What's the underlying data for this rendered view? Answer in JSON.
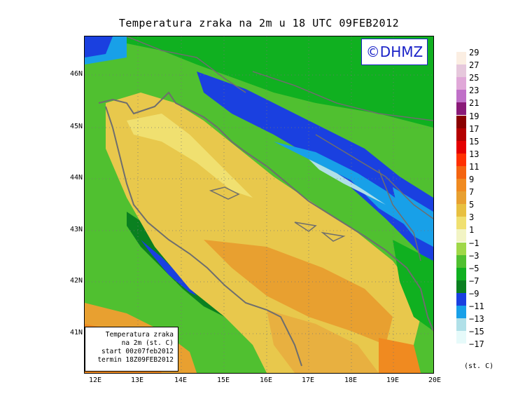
{
  "title": "Temperatura zraka na 2m u 18 UTC 09FEB2012",
  "copyright": "©DHMZ",
  "info_box": {
    "line1": "Temperatura zraka",
    "line2": "na 2m (st. C)",
    "line3": "start 00z07feb2012",
    "line4": "termin 18Z09FEB2012"
  },
  "lat_labels": [
    "46N",
    "45N",
    "44N",
    "43N",
    "42N",
    "41N"
  ],
  "lon_labels": [
    "12E",
    "13E",
    "14E",
    "15E",
    "16E",
    "17E",
    "18E",
    "19E",
    "20E"
  ],
  "legend": {
    "units": "(st. C)",
    "levels": [
      {
        "label": "29",
        "color": "#fbeee2"
      },
      {
        "label": "27",
        "color": "#e6c8dc"
      },
      {
        "label": "25",
        "color": "#e0a8d8"
      },
      {
        "label": "23",
        "color": "#c070c8"
      },
      {
        "label": "21",
        "color": "#8a1a78"
      },
      {
        "label": "19",
        "color": "#8a0000"
      },
      {
        "label": "17",
        "color": "#b40000"
      },
      {
        "label": "15",
        "color": "#e40000"
      },
      {
        "label": "13",
        "color": "#ff3000"
      },
      {
        "label": "11",
        "color": "#f46410"
      },
      {
        "label": "9",
        "color": "#f08a20"
      },
      {
        "label": "7",
        "color": "#e8a030"
      },
      {
        "label": "5",
        "color": "#e8c040"
      },
      {
        "label": "3",
        "color": "#f0e070"
      },
      {
        "label": "1",
        "color": "#f2f4c4"
      },
      {
        "label": "−1",
        "color": "#a0d848"
      },
      {
        "label": "−3",
        "color": "#50c030"
      },
      {
        "label": "−5",
        "color": "#10b020"
      },
      {
        "label": "−7",
        "color": "#0a8020"
      },
      {
        "label": "−9",
        "color": "#1a40e0"
      },
      {
        "label": "−11",
        "color": "#18a0e8"
      },
      {
        "label": "−13",
        "color": "#b0e0e8"
      },
      {
        "label": "−15",
        "color": "#e6fafa"
      },
      {
        "label": "−17",
        "color": ""
      }
    ]
  },
  "colors": {
    "coastline": "#6e6e6e",
    "sea_warm": "#e8b040",
    "sea_mild": "#e8c84c",
    "land_cold": "#10b020",
    "mountain_cold": "#1a40e0"
  }
}
